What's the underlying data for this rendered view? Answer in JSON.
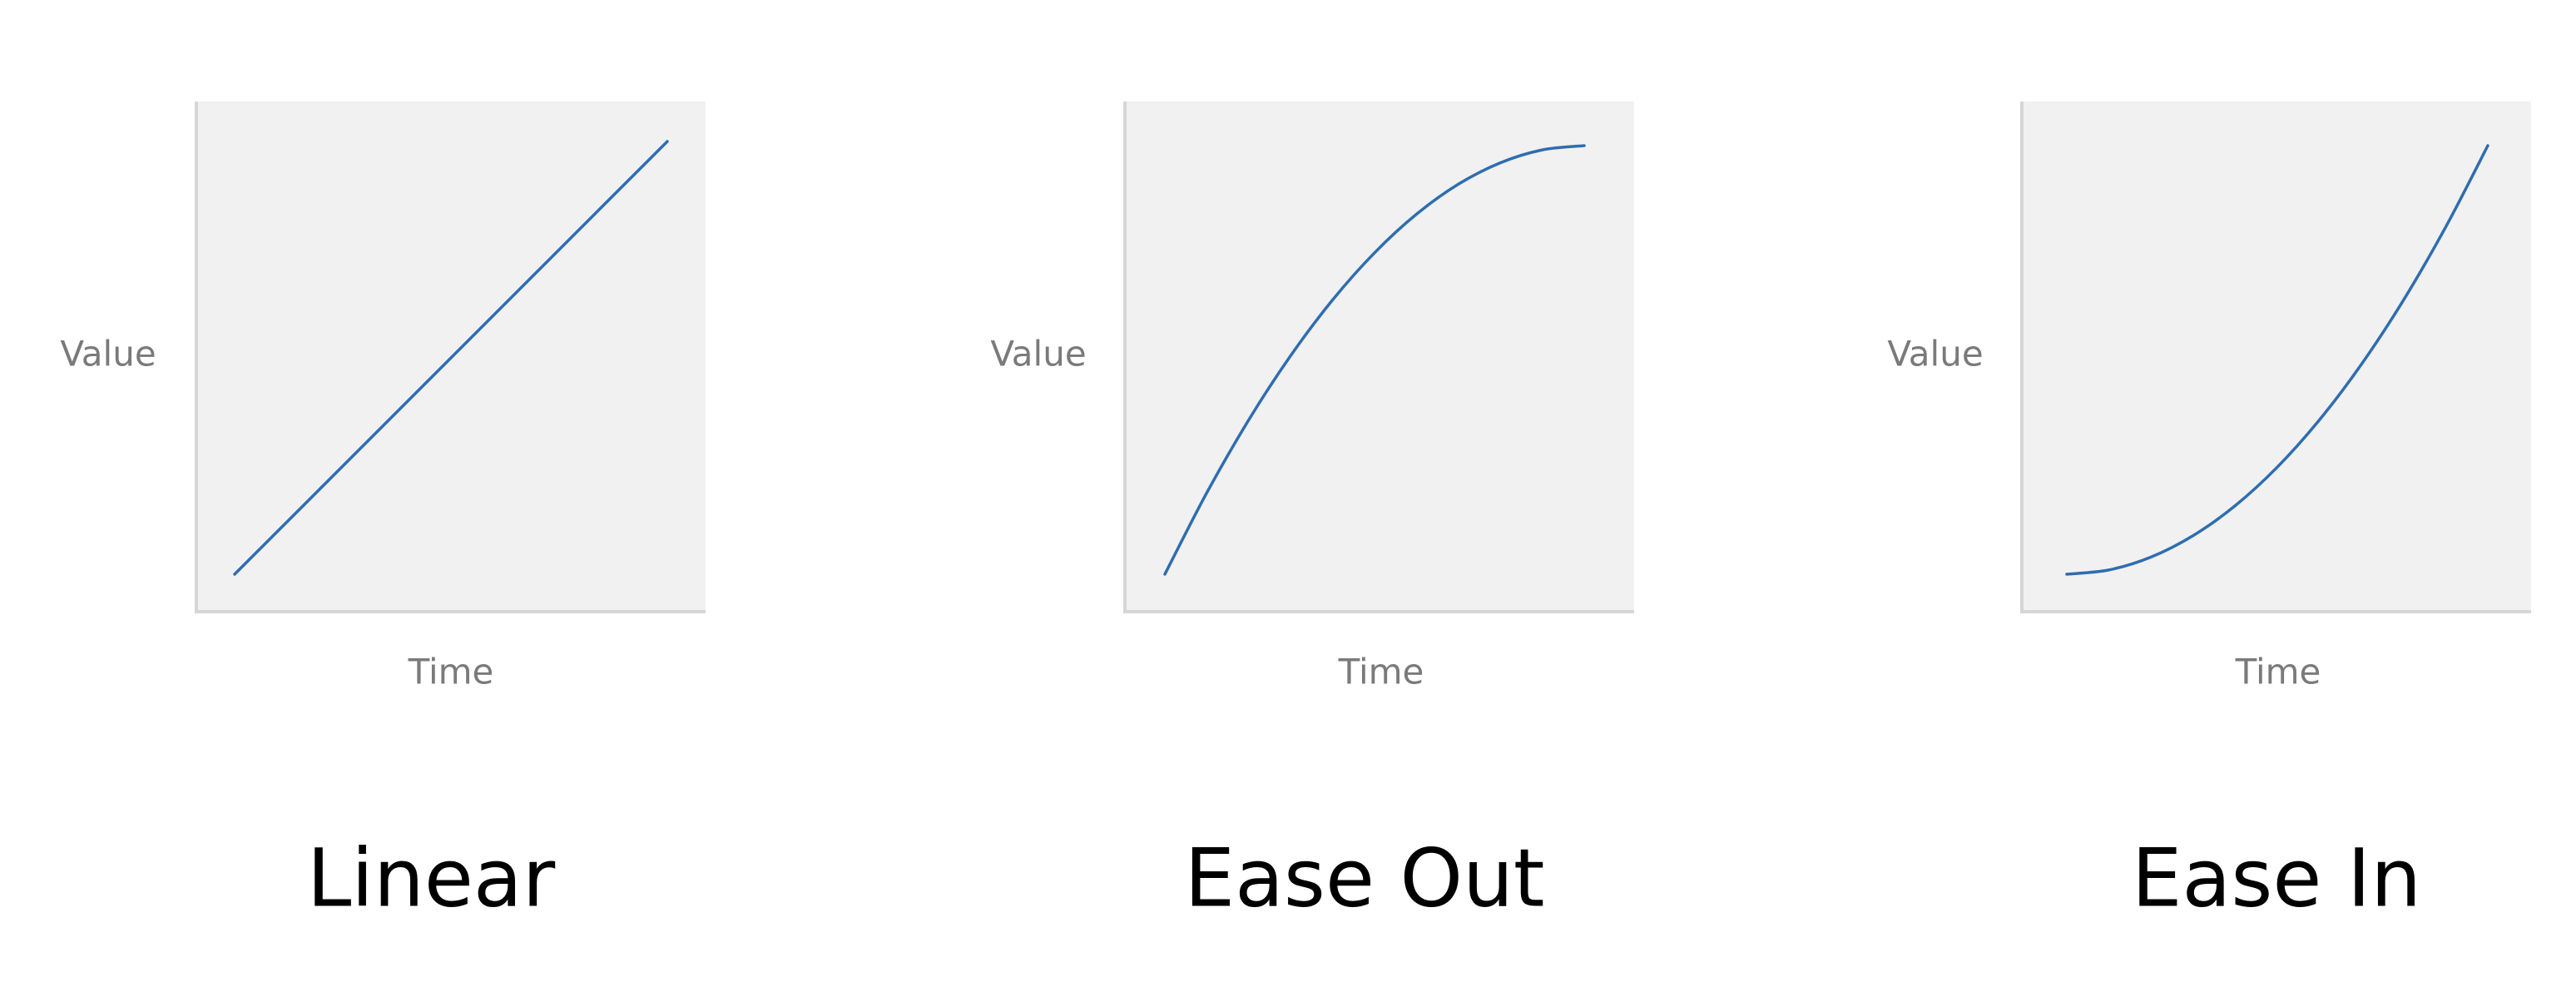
{
  "colors": {
    "curve": "#2f6db0",
    "plot_background": "#f1f1f1",
    "axis": "#d6d6d6",
    "axis_label": "#7a7a7a",
    "title": "#000000"
  },
  "chart_data": [
    {
      "type": "line",
      "title": "Linear",
      "xlabel": "Time",
      "ylabel": "Value",
      "grid": false,
      "xlim": [
        0,
        1
      ],
      "ylim": [
        0,
        1
      ],
      "series": [
        {
          "x": [
            0,
            0.25,
            0.5,
            0.75,
            1
          ],
          "values": [
            0,
            0.25,
            0.5,
            0.75,
            1
          ]
        }
      ]
    },
    {
      "type": "line",
      "title": "Ease Out",
      "xlabel": "Time",
      "ylabel": "Value",
      "grid": false,
      "xlim": [
        0,
        1
      ],
      "ylim": [
        0,
        1
      ],
      "series": [
        {
          "x": [
            0,
            0.1,
            0.2,
            0.3,
            0.4,
            0.5,
            0.6,
            0.7,
            0.8,
            0.9,
            1
          ],
          "values": [
            0,
            0.19,
            0.36,
            0.51,
            0.64,
            0.75,
            0.84,
            0.91,
            0.96,
            0.99,
            1
          ]
        }
      ]
    },
    {
      "type": "line",
      "title": "Ease In",
      "xlabel": "Time",
      "ylabel": "Value",
      "grid": false,
      "xlim": [
        0,
        1
      ],
      "ylim": [
        0,
        1
      ],
      "series": [
        {
          "x": [
            0,
            0.1,
            0.2,
            0.3,
            0.4,
            0.5,
            0.6,
            0.7,
            0.8,
            0.9,
            1
          ],
          "values": [
            0,
            0.01,
            0.04,
            0.09,
            0.16,
            0.25,
            0.36,
            0.49,
            0.64,
            0.81,
            1
          ]
        }
      ]
    }
  ]
}
